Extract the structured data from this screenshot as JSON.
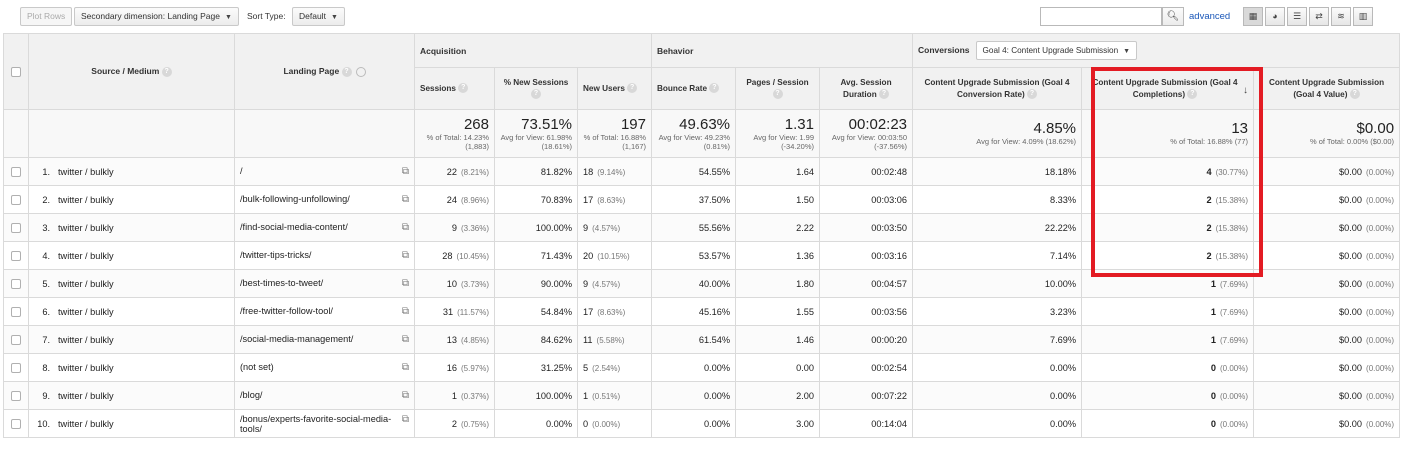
{
  "toolbar": {
    "plot_rows": "Plot Rows",
    "secondary_dimension": "Secondary dimension: Landing Page",
    "sort_type_label": "Sort Type:",
    "sort_type_value": "Default",
    "search_value": "",
    "advanced": "advanced",
    "view_icons": [
      "table-view-icon",
      "pie-view-icon",
      "performance-view-icon",
      "comparison-view-icon",
      "term-cloud-view-icon",
      "pivot-view-icon"
    ]
  },
  "headers": {
    "source_medium": "Source / Medium",
    "landing_page": "Landing Page",
    "acquisition": "Acquisition",
    "behavior": "Behavior",
    "conversions": "Conversions",
    "goal_select": "Goal 4: Content Upgrade Submission",
    "columns": {
      "sessions": "Sessions",
      "new_sessions": "% New Sessions",
      "new_users": "New Users",
      "bounce_rate": "Bounce Rate",
      "pages_session": "Pages / Session",
      "avg_duration": "Avg. Session Duration",
      "conv_rate": "Content Upgrade Submission (Goal 4 Conversion Rate)",
      "completions": "Content Upgrade Submission (Goal 4 Completions)",
      "value": "Content Upgrade Submission (Goal 4 Value)"
    }
  },
  "totals": {
    "sessions": "268",
    "sessions_sub": "% of Total: 14.23% (1,883)",
    "new_sessions": "73.51%",
    "new_sessions_sub": "Avg for View: 61.98% (18.61%)",
    "new_users": "197",
    "new_users_sub": "% of Total: 16.88% (1,167)",
    "bounce_rate": "49.63%",
    "bounce_rate_sub": "Avg for View: 49.23% (0.81%)",
    "pages_session": "1.31",
    "pages_session_sub": "Avg for View: 1.99 (-34.20%)",
    "avg_duration": "00:02:23",
    "avg_duration_sub": "Avg for View: 00:03:50 (-37.56%)",
    "conv_rate": "4.85%",
    "conv_rate_sub": "Avg for View: 4.09% (18.62%)",
    "completions": "13",
    "completions_sub": "% of Total: 16.88% (77)",
    "value": "$0.00",
    "value_sub": "% of Total: 0.00% ($0.00)"
  },
  "rows": [
    {
      "n": "1.",
      "source": "twitter / bulkly",
      "landing": "/",
      "sessions": "22",
      "sessions_pct": "(8.21%)",
      "new_sessions": "81.82%",
      "new_users": "18",
      "new_users_pct": "(9.14%)",
      "bounce": "54.55%",
      "pages": "1.64",
      "duration": "00:02:48",
      "conv_rate": "18.18%",
      "completions": "4",
      "completions_pct": "(30.77%)",
      "value": "$0.00",
      "value_pct": "(0.00%)"
    },
    {
      "n": "2.",
      "source": "twitter / bulkly",
      "landing": "/bulk-following-unfollowing/",
      "sessions": "24",
      "sessions_pct": "(8.96%)",
      "new_sessions": "70.83%",
      "new_users": "17",
      "new_users_pct": "(8.63%)",
      "bounce": "37.50%",
      "pages": "1.50",
      "duration": "00:03:06",
      "conv_rate": "8.33%",
      "completions": "2",
      "completions_pct": "(15.38%)",
      "value": "$0.00",
      "value_pct": "(0.00%)"
    },
    {
      "n": "3.",
      "source": "twitter / bulkly",
      "landing": "/find-social-media-content/",
      "sessions": "9",
      "sessions_pct": "(3.36%)",
      "new_sessions": "100.00%",
      "new_users": "9",
      "new_users_pct": "(4.57%)",
      "bounce": "55.56%",
      "pages": "2.22",
      "duration": "00:03:50",
      "conv_rate": "22.22%",
      "completions": "2",
      "completions_pct": "(15.38%)",
      "value": "$0.00",
      "value_pct": "(0.00%)"
    },
    {
      "n": "4.",
      "source": "twitter / bulkly",
      "landing": "/twitter-tips-tricks/",
      "sessions": "28",
      "sessions_pct": "(10.45%)",
      "new_sessions": "71.43%",
      "new_users": "20",
      "new_users_pct": "(10.15%)",
      "bounce": "53.57%",
      "pages": "1.36",
      "duration": "00:03:16",
      "conv_rate": "7.14%",
      "completions": "2",
      "completions_pct": "(15.38%)",
      "value": "$0.00",
      "value_pct": "(0.00%)"
    },
    {
      "n": "5.",
      "source": "twitter / bulkly",
      "landing": "/best-times-to-tweet/",
      "sessions": "10",
      "sessions_pct": "(3.73%)",
      "new_sessions": "90.00%",
      "new_users": "9",
      "new_users_pct": "(4.57%)",
      "bounce": "40.00%",
      "pages": "1.80",
      "duration": "00:04:57",
      "conv_rate": "10.00%",
      "completions": "1",
      "completions_pct": "(7.69%)",
      "value": "$0.00",
      "value_pct": "(0.00%)"
    },
    {
      "n": "6.",
      "source": "twitter / bulkly",
      "landing": "/free-twitter-follow-tool/",
      "sessions": "31",
      "sessions_pct": "(11.57%)",
      "new_sessions": "54.84%",
      "new_users": "17",
      "new_users_pct": "(8.63%)",
      "bounce": "45.16%",
      "pages": "1.55",
      "duration": "00:03:56",
      "conv_rate": "3.23%",
      "completions": "1",
      "completions_pct": "(7.69%)",
      "value": "$0.00",
      "value_pct": "(0.00%)"
    },
    {
      "n": "7.",
      "source": "twitter / bulkly",
      "landing": "/social-media-management/",
      "sessions": "13",
      "sessions_pct": "(4.85%)",
      "new_sessions": "84.62%",
      "new_users": "11",
      "new_users_pct": "(5.58%)",
      "bounce": "61.54%",
      "pages": "1.46",
      "duration": "00:00:20",
      "conv_rate": "7.69%",
      "completions": "1",
      "completions_pct": "(7.69%)",
      "value": "$0.00",
      "value_pct": "(0.00%)"
    },
    {
      "n": "8.",
      "source": "twitter / bulkly",
      "landing": "(not set)",
      "sessions": "16",
      "sessions_pct": "(5.97%)",
      "new_sessions": "31.25%",
      "new_users": "5",
      "new_users_pct": "(2.54%)",
      "bounce": "0.00%",
      "pages": "0.00",
      "duration": "00:02:54",
      "conv_rate": "0.00%",
      "completions": "0",
      "completions_pct": "(0.00%)",
      "value": "$0.00",
      "value_pct": "(0.00%)"
    },
    {
      "n": "9.",
      "source": "twitter / bulkly",
      "landing": "/blog/",
      "sessions": "1",
      "sessions_pct": "(0.37%)",
      "new_sessions": "100.00%",
      "new_users": "1",
      "new_users_pct": "(0.51%)",
      "bounce": "0.00%",
      "pages": "2.00",
      "duration": "00:07:22",
      "conv_rate": "0.00%",
      "completions": "0",
      "completions_pct": "(0.00%)",
      "value": "$0.00",
      "value_pct": "(0.00%)"
    },
    {
      "n": "10.",
      "source": "twitter / bulkly",
      "landing": "/bonus/experts-favorite-social-media-tools/",
      "sessions": "2",
      "sessions_pct": "(0.75%)",
      "new_sessions": "0.00%",
      "new_users": "0",
      "new_users_pct": "(0.00%)",
      "bounce": "0.00%",
      "pages": "3.00",
      "duration": "00:14:04",
      "conv_rate": "0.00%",
      "completions": "0",
      "completions_pct": "(0.00%)",
      "value": "$0.00",
      "value_pct": "(0.00%)"
    }
  ],
  "colors": {
    "highlight": "#e31b23",
    "link": "#1a57b8"
  }
}
